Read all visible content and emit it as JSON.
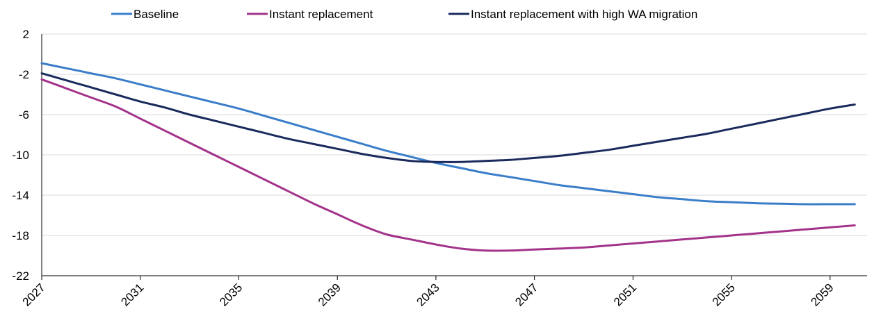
{
  "chart_data": {
    "type": "line",
    "title": "",
    "xlabel": "",
    "ylabel": "",
    "x": [
      2027,
      2028,
      2029,
      2030,
      2031,
      2032,
      2033,
      2034,
      2035,
      2036,
      2037,
      2038,
      2039,
      2040,
      2041,
      2042,
      2043,
      2044,
      2045,
      2046,
      2047,
      2048,
      2049,
      2050,
      2051,
      2052,
      2053,
      2054,
      2055,
      2056,
      2057,
      2058,
      2059,
      2060
    ],
    "xticks": [
      "2027",
      "2031",
      "2035",
      "2039",
      "2043",
      "2047",
      "2051",
      "2055",
      "2059"
    ],
    "yticks": [
      "2",
      "-2",
      "-6",
      "-10",
      "-14",
      "-18",
      "-22"
    ],
    "ylim": [
      -22,
      2
    ],
    "xlim": [
      2027,
      2060.5
    ],
    "grid": "horizontal",
    "legend_position": "top",
    "series": [
      {
        "name": "Baseline",
        "color": "#3a7dc9",
        "values": [
          -0.9,
          -1.4,
          -1.9,
          -2.4,
          -3.0,
          -3.6,
          -4.2,
          -4.8,
          -5.4,
          -6.1,
          -6.8,
          -7.5,
          -8.2,
          -8.9,
          -9.6,
          -10.2,
          -10.8,
          -11.3,
          -11.8,
          -12.2,
          -12.6,
          -13.0,
          -13.3,
          -13.6,
          -13.9,
          -14.2,
          -14.4,
          -14.6,
          -14.7,
          -14.8,
          -14.85,
          -14.9,
          -14.9,
          -14.9
        ]
      },
      {
        "name": "Instant replacement",
        "color": "#a3338a",
        "values": [
          -2.5,
          -3.4,
          -4.3,
          -5.2,
          -6.4,
          -7.6,
          -8.8,
          -10.0,
          -11.2,
          -12.4,
          -13.6,
          -14.8,
          -15.9,
          -17.0,
          -17.9,
          -18.4,
          -18.9,
          -19.3,
          -19.5,
          -19.5,
          -19.4,
          -19.3,
          -19.2,
          -19.0,
          -18.8,
          -18.6,
          -18.4,
          -18.2,
          -18.0,
          -17.8,
          -17.6,
          -17.4,
          -17.2,
          -17.0
        ]
      },
      {
        "name": "Instant replacement with high WA migration",
        "color": "#1a2a5c",
        "values": [
          -1.9,
          -2.6,
          -3.3,
          -4.0,
          -4.7,
          -5.3,
          -6.0,
          -6.6,
          -7.2,
          -7.8,
          -8.4,
          -8.9,
          -9.4,
          -9.9,
          -10.3,
          -10.6,
          -10.7,
          -10.7,
          -10.6,
          -10.5,
          -10.3,
          -10.1,
          -9.8,
          -9.5,
          -9.1,
          -8.7,
          -8.3,
          -7.9,
          -7.4,
          -6.9,
          -6.4,
          -5.9,
          -5.4,
          -5.0
        ]
      }
    ]
  }
}
